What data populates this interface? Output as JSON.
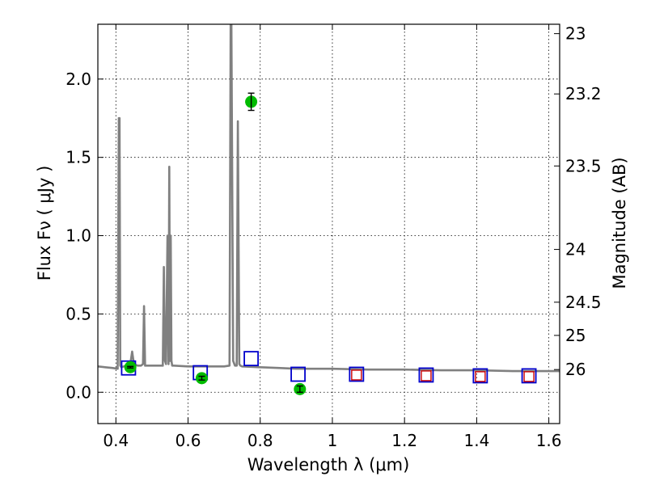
{
  "chart_data": {
    "type": "line",
    "xlabel": "Wavelength  λ (μm)",
    "ylabel": "Flux  Fν  ( μJy )",
    "y2label": "Magnitude (AB)",
    "xlim": [
      0.35,
      1.63
    ],
    "ylim": [
      -0.2,
      2.35
    ],
    "grid": true,
    "x_ticks": [
      0.4,
      0.6,
      0.8,
      1.0,
      1.2,
      1.4,
      1.6
    ],
    "x_tick_labels": [
      "0.4",
      "0.6",
      "0.8",
      "1",
      "1.2",
      "1.4",
      "1.6"
    ],
    "y_ticks": [
      0.0,
      0.5,
      1.0,
      1.5,
      2.0
    ],
    "y_tick_labels": [
      "0.0",
      "0.5",
      "1.0",
      "1.5",
      "2.0"
    ],
    "mag_ticks": [
      {
        "label": "23",
        "flux": 2.29
      },
      {
        "label": "23.2",
        "flux": 1.905
      },
      {
        "label": "23.5",
        "flux": 1.445
      },
      {
        "label": "24",
        "flux": 0.912
      },
      {
        "label": "24.5",
        "flux": 0.575
      },
      {
        "label": "25",
        "flux": 0.363
      },
      {
        "label": "26",
        "flux": 0.145
      }
    ],
    "colors": {
      "model": "#808080",
      "detection": "#00bb00",
      "model_box": "#0000cc",
      "upper_box": "#cc0000"
    },
    "model_spectrum": {
      "x": [
        0.35,
        0.37,
        0.39,
        0.405,
        0.408,
        0.41,
        0.412,
        0.415,
        0.43,
        0.44,
        0.445,
        0.45,
        0.46,
        0.47,
        0.475,
        0.478,
        0.481,
        0.49,
        0.5,
        0.52,
        0.53,
        0.533,
        0.536,
        0.539,
        0.543,
        0.546,
        0.548,
        0.55,
        0.552,
        0.554,
        0.556,
        0.56,
        0.6,
        0.65,
        0.7,
        0.715,
        0.718,
        0.72,
        0.725,
        0.73,
        0.735,
        0.738,
        0.742,
        0.745,
        0.75,
        0.8,
        0.85,
        0.9,
        0.95,
        1.0,
        1.1,
        1.2,
        1.3,
        1.4,
        1.5,
        1.63
      ],
      "y": [
        0.165,
        0.16,
        0.155,
        0.15,
        1.75,
        1.75,
        0.17,
        0.16,
        0.17,
        0.18,
        0.26,
        0.18,
        0.17,
        0.17,
        0.18,
        0.55,
        0.17,
        0.17,
        0.17,
        0.17,
        0.17,
        0.8,
        0.2,
        0.18,
        1.0,
        0.18,
        1.44,
        0.2,
        1.0,
        0.2,
        0.17,
        0.17,
        0.165,
        0.165,
        0.165,
        0.17,
        2.35,
        2.35,
        0.2,
        0.17,
        0.17,
        1.73,
        0.18,
        0.17,
        0.165,
        0.16,
        0.155,
        0.15,
        0.15,
        0.15,
        0.145,
        0.145,
        0.14,
        0.14,
        0.135,
        0.135
      ]
    },
    "detections": [
      {
        "x": 0.44,
        "y": 0.16,
        "err": 0.005
      },
      {
        "x": 0.638,
        "y": 0.09,
        "err": 0.012
      },
      {
        "x": 0.775,
        "y": 1.855,
        "err": 0.055
      },
      {
        "x": 0.91,
        "y": 0.02,
        "err": 0.02
      }
    ],
    "model_boxes": [
      {
        "x": 0.435,
        "y": 0.155
      },
      {
        "x": 0.634,
        "y": 0.125
      },
      {
        "x": 0.775,
        "y": 0.215
      },
      {
        "x": 0.905,
        "y": 0.115
      },
      {
        "x": 1.067,
        "y": 0.115
      },
      {
        "x": 1.26,
        "y": 0.11
      },
      {
        "x": 1.41,
        "y": 0.105
      },
      {
        "x": 1.545,
        "y": 0.105
      }
    ],
    "upper_boxes": [
      {
        "x": 1.067,
        "y": 0.11
      },
      {
        "x": 1.26,
        "y": 0.105
      },
      {
        "x": 1.41,
        "y": 0.1
      },
      {
        "x": 1.545,
        "y": 0.1
      }
    ]
  }
}
